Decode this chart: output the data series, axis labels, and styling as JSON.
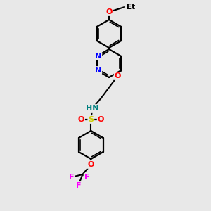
{
  "bg_color": "#e8e8e8",
  "bond_color": "#000000",
  "atom_colors": {
    "O": "#ff0000",
    "N": "#0000ff",
    "S": "#cccc00",
    "F": "#ff00ff",
    "H": "#008080",
    "C": "#000000"
  }
}
